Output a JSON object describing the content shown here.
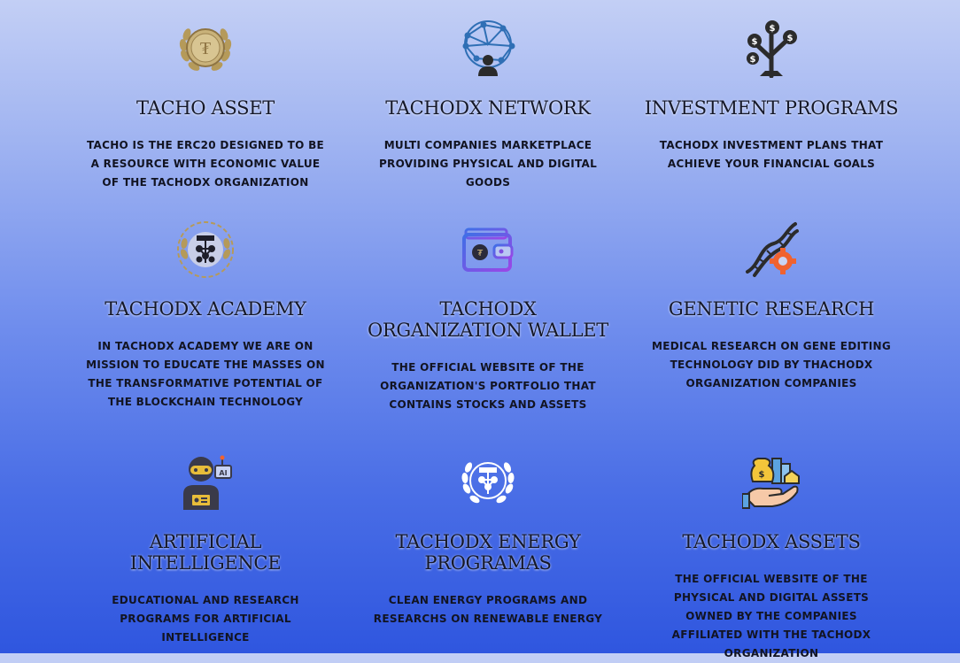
{
  "cards": [
    {
      "title": "TACHO ASSET",
      "desc": "TACHO IS THE ERC20 DESIGNED TO BE A RESOURCE WITH ECONOMIC VALUE OF THE TACHODX ORGANIZATION",
      "icon": "laurel-coin-icon"
    },
    {
      "title": "TACHODX NETWORK",
      "desc": "MULTI COMPANIES MARKETPLACE PROVIDING PHYSICAL AND DIGITAL GOODS",
      "icon": "network-globe-user-icon"
    },
    {
      "title": "INVESTMENT PROGRAMS",
      "desc": "TACHODX INVESTMENT PLANS THAT ACHIEVE YOUR FINANCIAL GOALS",
      "icon": "money-tree-icon"
    },
    {
      "title": "TACHODX ACADEMY",
      "desc": "IN TACHODX ACADEMY WE ARE ON MISSION TO EDUCATE THE MASSES ON THE TRANSFORMATIVE POTENTIAL OF THE BLOCKCHAIN TECHNOLOGY",
      "icon": "laurel-emblem-icon"
    },
    {
      "title": "TACHODX\nORGANIZATION WALLET",
      "desc": "THE OFFICIAL WEBSITE OF THE ORGANIZATION'S PORTFOLIO THAT CONTAINS STOCKS AND ASSETS",
      "icon": "wallet-icon"
    },
    {
      "title": "GENETIC RESEARCH",
      "desc": "MEDICAL RESEARCH ON GENE EDITING TECHNOLOGY DID BY THACHODX ORGANIZATION COMPANIES",
      "icon": "dna-gear-icon"
    },
    {
      "title": "ARTIFICIAL\nINTELLIGENCE",
      "desc": "EDUCATIONAL AND RESEARCH PROGRAMS FOR ARTIFICIAL INTELLIGENCE",
      "icon": "robot-ai-icon"
    },
    {
      "title": "TACHODX ENERGY\nPROGRAMAS",
      "desc": "CLEAN ENERGY PROGRAMS AND RESEARCHS ON RENEWABLE ENERGY",
      "icon": "white-laurel-emblem-icon"
    },
    {
      "title": "TACHODX ASSETS",
      "desc": "THE OFFICIAL WEBSITE OF THE PHYSICAL AND DIGITAL ASSETS OWNED BY THE COMPANIES AFFILIATED WITH THE TACHODX ORGANIZATION",
      "icon": "hand-assets-icon"
    }
  ],
  "colors": {
    "text": "#151828",
    "gold": "#b59a5a",
    "blue": "#2f6fb5",
    "orange": "#f0622f",
    "purple": "#7e4ee0"
  }
}
